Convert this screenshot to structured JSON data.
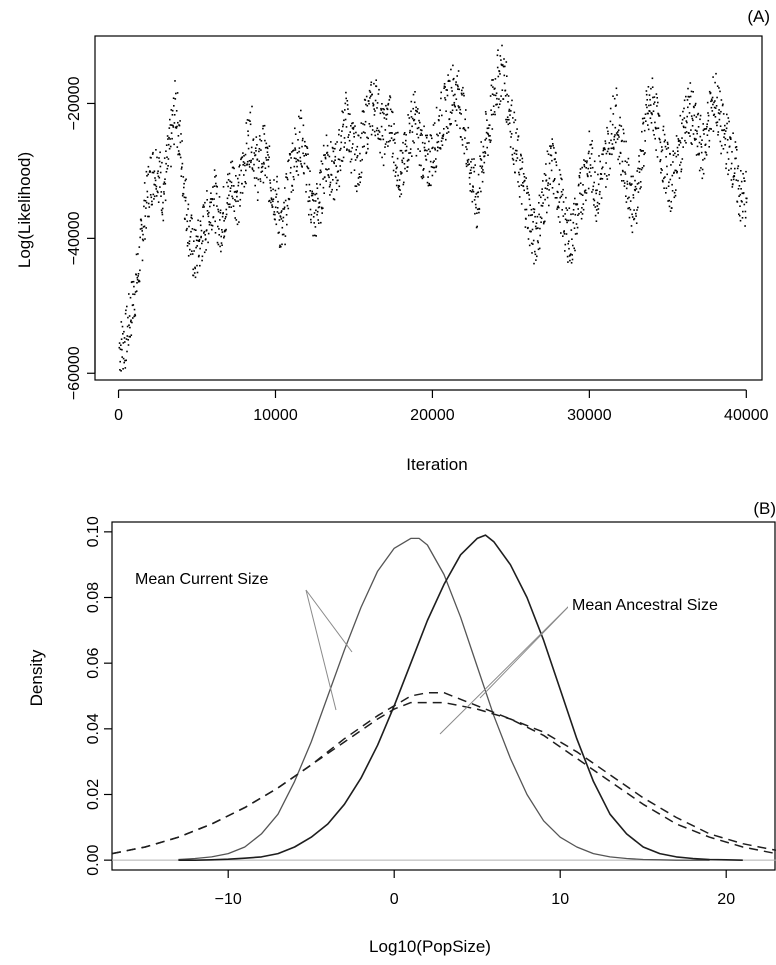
{
  "chart_data": [
    {
      "type": "scatter",
      "panel_label": "(A)",
      "xlabel": "Iteration",
      "ylabel": "Log(Likelihood)",
      "xlim": [
        -1500,
        41000
      ],
      "ylim": [
        -61000,
        -10000
      ],
      "x_ticks": [
        {
          "value": 0,
          "label": "0"
        },
        {
          "value": 10000,
          "label": "10000"
        },
        {
          "value": 20000,
          "label": "20000"
        },
        {
          "value": 30000,
          "label": "30000"
        },
        {
          "value": 40000,
          "label": "40000"
        }
      ],
      "y_ticks": [
        {
          "value": -60000,
          "label": "−60000"
        },
        {
          "value": -40000,
          "label": "−40000"
        },
        {
          "value": -20000,
          "label": "−20000"
        }
      ],
      "grid": false,
      "series": [
        {
          "color": "#000000",
          "x": [
            0,
            400,
            800,
            1200,
            1600,
            2000,
            2400,
            2800,
            3200,
            3600,
            4000,
            4400,
            4800,
            5200,
            5600,
            6000,
            6400,
            6800,
            7200,
            7600,
            8000,
            8400,
            8800,
            9200,
            9600,
            10000,
            10400,
            10800,
            11200,
            11600,
            12000,
            12400,
            12800,
            13200,
            13600,
            14000,
            14400,
            14800,
            15200,
            15600,
            16000,
            16400,
            16800,
            17200,
            17600,
            18000,
            18400,
            18800,
            19200,
            19600,
            20000,
            20400,
            20800,
            21200,
            21600,
            22000,
            22400,
            22800,
            23200,
            23600,
            24000,
            24400,
            24800,
            25200,
            25600,
            26000,
            26400,
            26800,
            27200,
            27600,
            28000,
            28400,
            28800,
            29200,
            29600,
            30000,
            30400,
            30800,
            31200,
            31600,
            32000,
            32400,
            32800,
            33200,
            33600,
            34000,
            34400,
            34800,
            35200,
            35600,
            36000,
            36400,
            36800,
            37200,
            37600,
            38000,
            38400,
            38800,
            39200,
            39600
          ],
          "y": [
            -56000,
            -55000,
            -50000,
            -45000,
            -36000,
            -31000,
            -29000,
            -33000,
            -27000,
            -20000,
            -29000,
            -38000,
            -43000,
            -40000,
            -37000,
            -33000,
            -38000,
            -35000,
            -31000,
            -34000,
            -28000,
            -24000,
            -30000,
            -27000,
            -31000,
            -34000,
            -40000,
            -31000,
            -27000,
            -25000,
            -31000,
            -37000,
            -34000,
            -27000,
            -31000,
            -28000,
            -22000,
            -26000,
            -29000,
            -24000,
            -21000,
            -20000,
            -25000,
            -22000,
            -27000,
            -31000,
            -25000,
            -22000,
            -26000,
            -29000,
            -27000,
            -23000,
            -21000,
            -18000,
            -19000,
            -23000,
            -30000,
            -35000,
            -27000,
            -23000,
            -17000,
            -15000,
            -20000,
            -26000,
            -31000,
            -35000,
            -40000,
            -37000,
            -32000,
            -29000,
            -33000,
            -38000,
            -40000,
            -36000,
            -31000,
            -28000,
            -33000,
            -30000,
            -26000,
            -21000,
            -27000,
            -31000,
            -36000,
            -29000,
            -22000,
            -20000,
            -25000,
            -29000,
            -32000,
            -28000,
            -23000,
            -21000,
            -25000,
            -27000,
            -22000,
            -19000,
            -24000,
            -26000,
            -29000,
            -34000
          ]
        }
      ]
    },
    {
      "type": "line",
      "panel_label": "(B)",
      "xlabel": "Log10(PopSize)",
      "ylabel": "Density",
      "xlim": [
        -17,
        23
      ],
      "ylim": [
        -0.003,
        0.103
      ],
      "x_ticks": [
        {
          "value": -10,
          "label": "−10"
        },
        {
          "value": 0,
          "label": "0"
        },
        {
          "value": 10,
          "label": "10"
        },
        {
          "value": 20,
          "label": "20"
        }
      ],
      "y_ticks": [
        {
          "value": 0.0,
          "label": "0.00"
        },
        {
          "value": 0.02,
          "label": "0.02"
        },
        {
          "value": 0.04,
          "label": "0.04"
        },
        {
          "value": 0.06,
          "label": "0.06"
        },
        {
          "value": 0.08,
          "label": "0.08"
        },
        {
          "value": 0.1,
          "label": "0.10"
        }
      ],
      "grid": false,
      "annotations": [
        {
          "text": "Mean Current Size"
        },
        {
          "text": "Mean Ancestral Size"
        }
      ],
      "series": [
        {
          "style": "solid",
          "color": "#555555",
          "stroke_width": 1.3,
          "x": [
            -13,
            -12,
            -11,
            -10,
            -9,
            -8,
            -7,
            -6,
            -5,
            -4,
            -3,
            -2,
            -1,
            0,
            1,
            1.5,
            2,
            3,
            4,
            5,
            6,
            7,
            8,
            9,
            10,
            11,
            12,
            13,
            14,
            15,
            16,
            17,
            18,
            19
          ],
          "y": [
            0.0002,
            0.0005,
            0.001,
            0.002,
            0.004,
            0.008,
            0.014,
            0.024,
            0.036,
            0.05,
            0.064,
            0.077,
            0.088,
            0.095,
            0.098,
            0.098,
            0.096,
            0.087,
            0.074,
            0.059,
            0.044,
            0.031,
            0.02,
            0.012,
            0.007,
            0.004,
            0.002,
            0.001,
            0.0005,
            0.0002,
            0.0001,
            0.0,
            0.0,
            0.0
          ]
        },
        {
          "style": "solid",
          "color": "#1e1e1e",
          "stroke_width": 1.6,
          "x": [
            -13,
            -12,
            -11,
            -10,
            -9,
            -8,
            -7,
            -6,
            -5,
            -4,
            -3,
            -2,
            -1,
            0,
            1,
            2,
            3,
            4,
            5,
            5.5,
            6,
            7,
            8,
            9,
            10,
            11,
            12,
            13,
            14,
            15,
            16,
            17,
            18,
            19,
            20,
            21
          ],
          "y": [
            0.0,
            0.0,
            0.0001,
            0.0003,
            0.0006,
            0.001,
            0.002,
            0.004,
            0.007,
            0.011,
            0.017,
            0.025,
            0.035,
            0.047,
            0.06,
            0.073,
            0.084,
            0.093,
            0.098,
            0.099,
            0.097,
            0.09,
            0.08,
            0.067,
            0.052,
            0.037,
            0.024,
            0.014,
            0.008,
            0.004,
            0.002,
            0.001,
            0.0005,
            0.0002,
            0.0001,
            0.0
          ]
        },
        {
          "style": "dashed",
          "color": "#1e1e1e",
          "stroke_width": 1.5,
          "x": [
            -17,
            -15,
            -13,
            -11,
            -9,
            -7,
            -5,
            -3,
            -1,
            0,
            1,
            1.5,
            2,
            3,
            5,
            7,
            9,
            11,
            13,
            15,
            17,
            19,
            21,
            23
          ],
          "y": [
            0.002,
            0.004,
            0.007,
            0.011,
            0.016,
            0.022,
            0.029,
            0.036,
            0.043,
            0.046,
            0.048,
            0.048,
            0.048,
            0.048,
            0.046,
            0.043,
            0.039,
            0.033,
            0.026,
            0.019,
            0.013,
            0.008,
            0.005,
            0.003
          ]
        },
        {
          "style": "dashed",
          "color": "#1e1e1e",
          "stroke_width": 1.5,
          "x": [
            -17,
            -15,
            -13,
            -11,
            -9,
            -7,
            -5,
            -3,
            -1,
            0,
            1,
            2,
            2.5,
            3,
            4,
            5,
            7,
            9,
            11,
            13,
            15,
            17,
            19,
            21,
            23
          ],
          "y": [
            0.002,
            0.004,
            0.007,
            0.011,
            0.016,
            0.022,
            0.029,
            0.037,
            0.044,
            0.047,
            0.05,
            0.051,
            0.051,
            0.051,
            0.049,
            0.047,
            0.043,
            0.038,
            0.031,
            0.024,
            0.017,
            0.011,
            0.007,
            0.004,
            0.002
          ]
        }
      ]
    }
  ]
}
